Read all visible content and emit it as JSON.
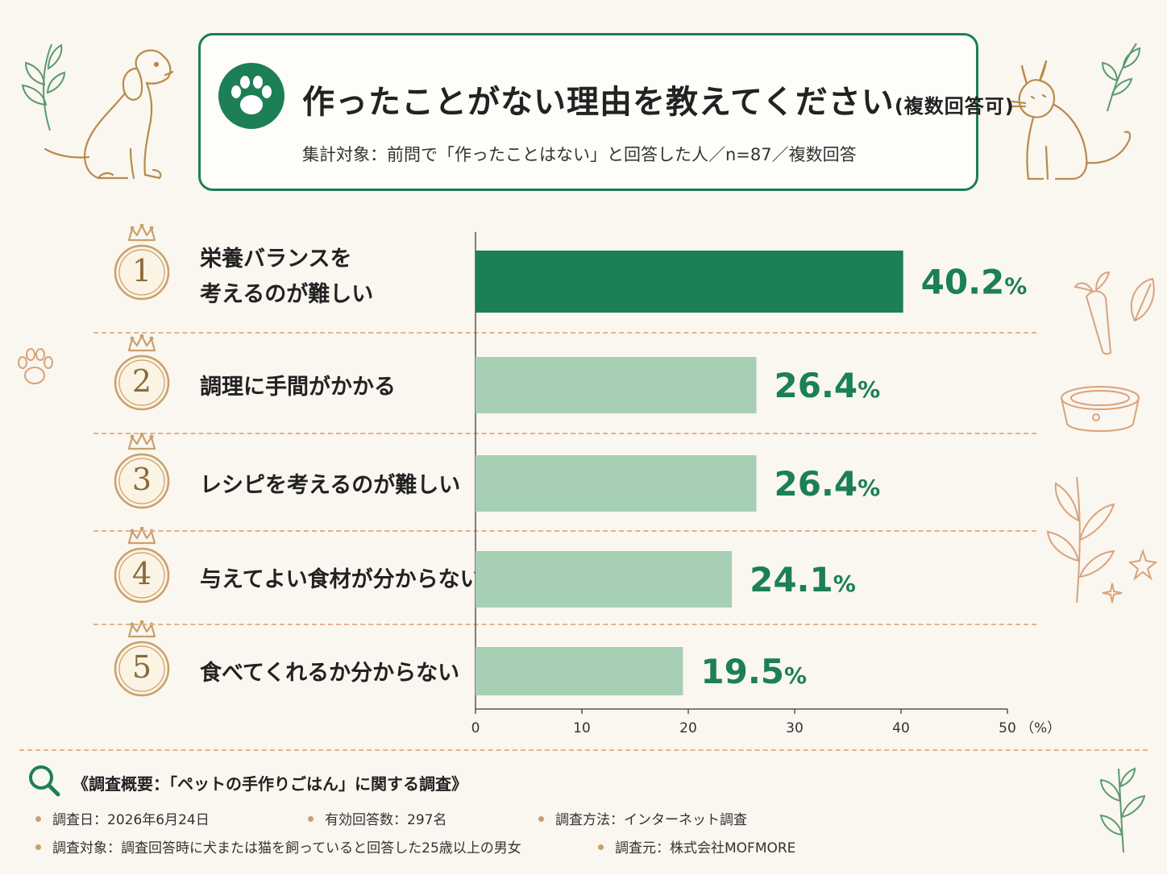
{
  "header": {
    "title": "作ったことがない理由を教えてください",
    "title_note": "(複数回答可)",
    "subtitle": "集計対象：前問で「作ったことはない」と回答した人／n=87／複数回答"
  },
  "ranks": [
    {
      "num": "1",
      "label_lines": [
        "栄養バランスを",
        "考えるのが難しい"
      ]
    },
    {
      "num": "2",
      "label_lines": [
        "調理に手間がかかる"
      ]
    },
    {
      "num": "3",
      "label_lines": [
        "レシピを考えるのが難しい"
      ]
    },
    {
      "num": "4",
      "label_lines": [
        "与えてよい食材が分からない"
      ]
    },
    {
      "num": "5",
      "label_lines": [
        "食べてくれるか分からない"
      ]
    }
  ],
  "chart_data": {
    "type": "bar",
    "orientation": "horizontal",
    "categories": [
      "栄養バランスを考えるのが難しい",
      "調理に手間がかかる",
      "レシピを考えるのが難しい",
      "与えてよい食材が分からない",
      "食べてくれるか分からない"
    ],
    "values": [
      40.2,
      26.4,
      26.4,
      24.1,
      19.5
    ],
    "value_labels": [
      "40.2",
      "26.4",
      "26.4",
      "24.1",
      "19.5"
    ],
    "value_unit": "%",
    "xlim": [
      0,
      50
    ],
    "xticks": [
      "0",
      "10",
      "20",
      "30",
      "40",
      "50"
    ],
    "xunit": "（%）",
    "colors": {
      "highlight": "#1c7f55",
      "normal": "#a7cfb4",
      "label": "#1c7f55"
    }
  },
  "footer": {
    "title": "《調査概要：「ペットの手作りごはん」に関する調査》",
    "items": [
      "調査日：2026年6月24日",
      "有効回答数：297名",
      "調査方法：インターネット調査",
      "調査対象：調査回答時に犬または猫を飼っていると回答した25歳以上の男女",
      "調査元：株式会社MOFMORE"
    ]
  }
}
